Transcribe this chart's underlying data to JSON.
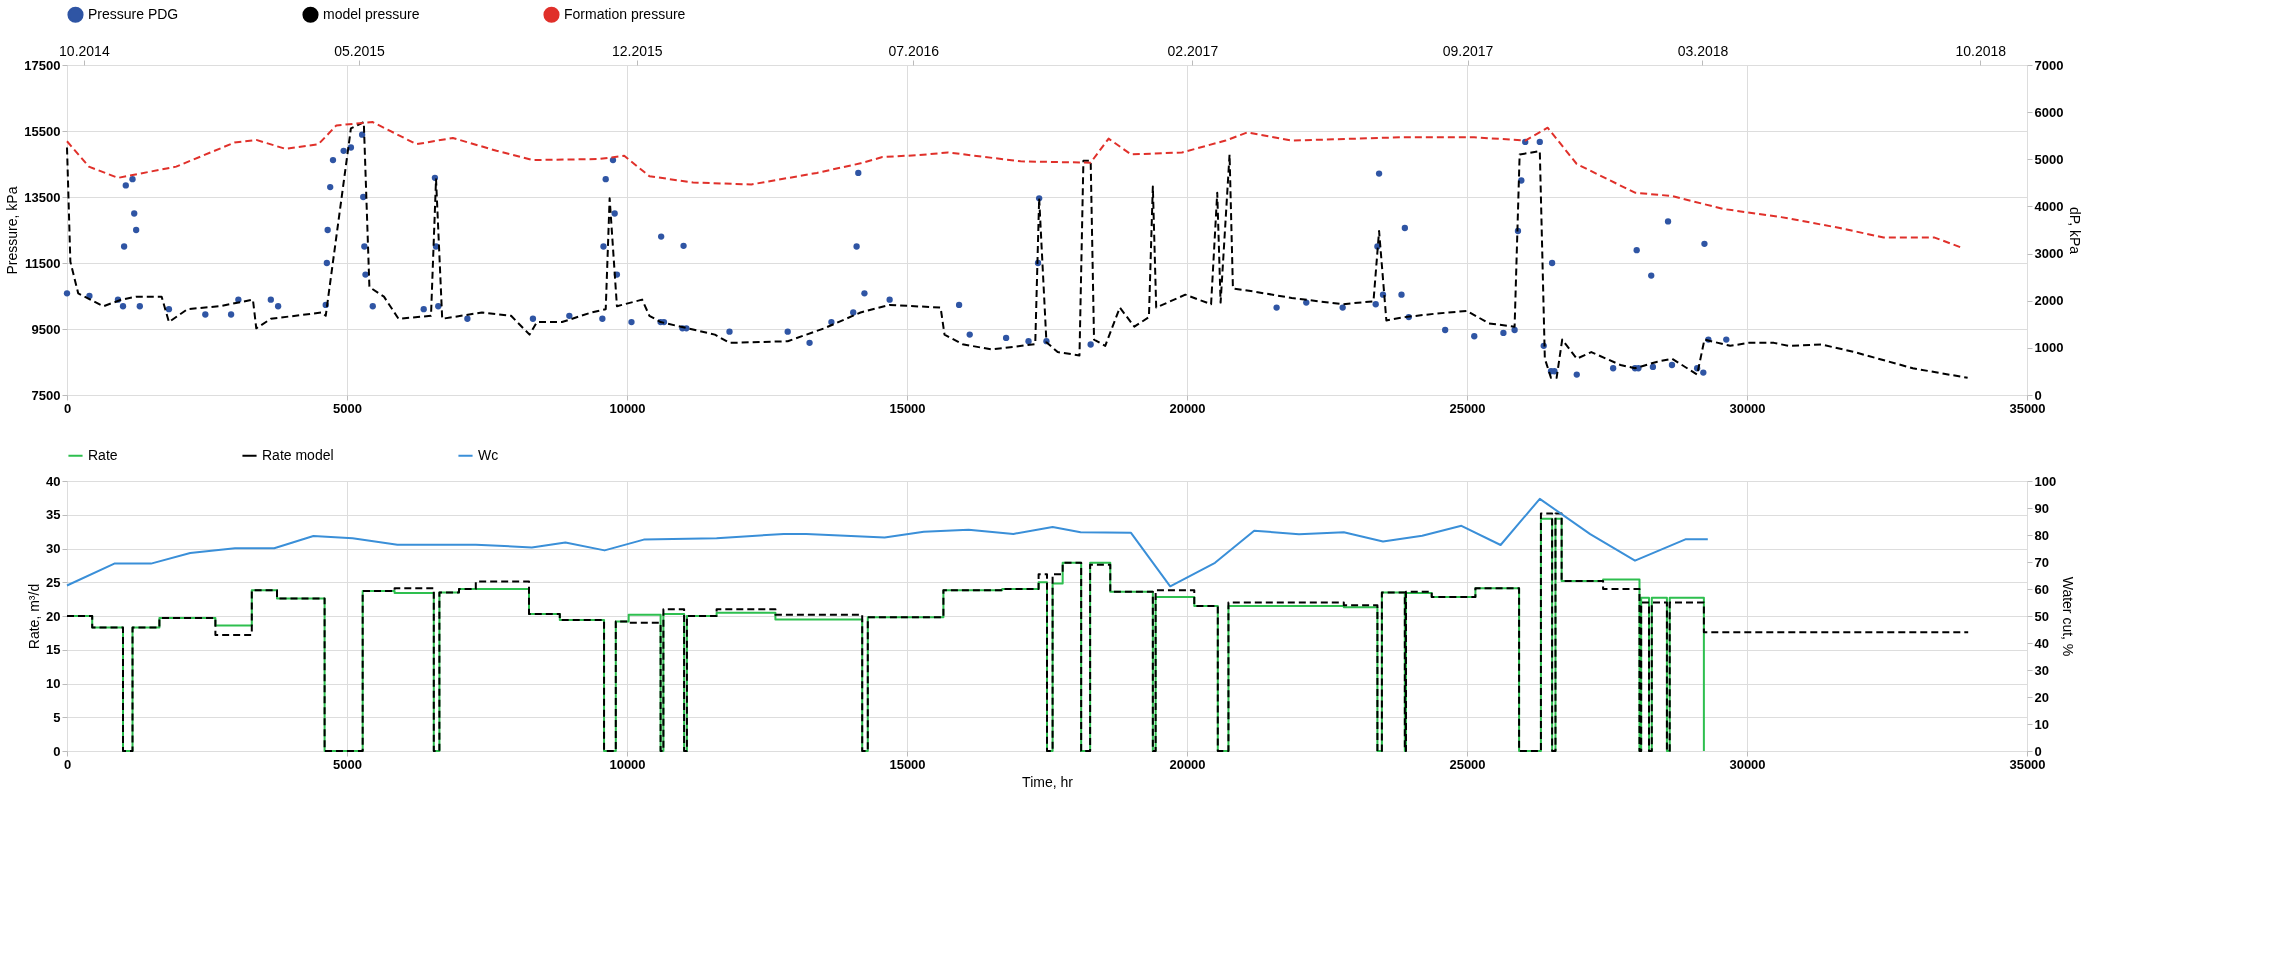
{
  "chart_data": [
    {
      "type": "line",
      "ylabel": "Pressure, kPa",
      "y2label": "dP, kPa",
      "xlim": [
        0,
        35000
      ],
      "xticks": [
        0,
        5000,
        10000,
        15000,
        20000,
        25000,
        30000,
        35000
      ],
      "ylim": [
        7500,
        17500
      ],
      "yticks": [
        7500,
        9500,
        11500,
        13500,
        15500,
        17500
      ],
      "y2lim": [
        0,
        7000
      ],
      "y2ticks": [
        0,
        1000,
        2000,
        3000,
        4000,
        5000,
        6000,
        7000
      ],
      "x2lim": [
        "2014-09-18",
        "2018-11-06"
      ],
      "x2ticks": [
        {
          "value": "2014-10",
          "label": "10.2014"
        },
        {
          "value": "2015-05",
          "label": "05.2015"
        },
        {
          "value": "2015-12",
          "label": "12.2015"
        },
        {
          "value": "2016-07",
          "label": "07.2016"
        },
        {
          "value": "2017-02",
          "label": "02.2017"
        },
        {
          "value": "2017-09",
          "label": "09.2017"
        },
        {
          "value": "2018-03",
          "label": "03.2018"
        },
        {
          "value": "2018-10",
          "label": "10.2018"
        }
      ],
      "grid": true,
      "legend": "top",
      "series": [
        {
          "name": "Pressure PDG",
          "type": "scatter",
          "marker": "circle",
          "color": "#2f55a4",
          "x": [
            0,
            400,
            910,
            1000,
            1020,
            1050,
            1170,
            1200,
            1235,
            1300,
            1820,
            2470,
            2930,
            3060,
            3640,
            3770,
            4620,
            4640,
            4655,
            4700,
            4750,
            4940,
            5070,
            5270,
            5290,
            5310,
            5330,
            5460,
            6370,
            6570,
            6590,
            6630,
            7150,
            8320,
            8970,
            9560,
            9580,
            9620,
            9750,
            9780,
            9820,
            10080,
            10600,
            10610,
            10660,
            10990,
            11010,
            11060,
            11830,
            12870,
            13260,
            13650,
            14040,
            14100,
            14130,
            14240,
            14690,
            15930,
            16120,
            16770,
            17170,
            17340,
            17360,
            17490,
            18280,
            21600,
            22130,
            22780,
            23370,
            23400,
            23430,
            23500,
            23830,
            23890,
            23960,
            24610,
            25130,
            25650,
            25850,
            25910,
            25970,
            26040,
            26300,
            26370,
            26500,
            26520,
            26560,
            26960,
            27610,
            28000,
            28030,
            28060,
            28290,
            28320,
            28590,
            28660,
            29110,
            29220,
            29240,
            29310,
            29630
          ],
          "values": [
            10580,
            10500,
            10390,
            10190,
            12000,
            13850,
            14040,
            13000,
            12500,
            10190,
            10100,
            9940,
            9940,
            10390,
            10390,
            10190,
            10230,
            11500,
            12500,
            13800,
            14620,
            14900,
            15000,
            15390,
            13500,
            12000,
            11150,
            10190,
            10100,
            14080,
            12000,
            10190,
            9810,
            9810,
            9900,
            9810,
            12000,
            14040,
            14620,
            13000,
            11150,
            9710,
            9710,
            12300,
            9710,
            9520,
            12020,
            9520,
            9420,
            9420,
            9080,
            9710,
            10000,
            12000,
            14230,
            10580,
            10390,
            10230,
            9330,
            9230,
            9130,
            11500,
            13460,
            9130,
            9030,
            10150,
            10300,
            10150,
            10250,
            12000,
            14210,
            10540,
            10540,
            12560,
            9860,
            9470,
            9280,
            9380,
            9470,
            12470,
            14000,
            15170,
            15170,
            8990,
            8220,
            11500,
            8220,
            8120,
            8310,
            8310,
            11890,
            8310,
            11120,
            8350,
            12760,
            8410,
            8310,
            8180,
            12080,
            9180,
            9180
          ]
        },
        {
          "name": "model pressure",
          "line_style": "dashed",
          "color": "#000000",
          "x": [
            0,
            60,
            200,
            650,
            975,
            1235,
            1690,
            1820,
            2150,
            2730,
            3320,
            3380,
            3640,
            4550,
            4620,
            5070,
            5300,
            5400,
            5660,
            5920,
            6500,
            6590,
            6700,
            7410,
            7930,
            8260,
            8390,
            8840,
            9360,
            9620,
            9690,
            9820,
            10270,
            10400,
            10600,
            11570,
            11830,
            12870,
            13520,
            14170,
            14690,
            15600,
            15670,
            15990,
            16510,
            17290,
            17360,
            17490,
            17690,
            18080,
            18150,
            18280,
            18340,
            18540,
            18800,
            19060,
            19320,
            19390,
            19450,
            19970,
            20430,
            20540,
            20600,
            20760,
            20820,
            21210,
            21870,
            22780,
            23330,
            23430,
            23560,
            23890,
            24410,
            25000,
            25390,
            25850,
            25940,
            26300,
            26390,
            26500,
            26600,
            26700,
            26960,
            27220,
            27740,
            28000,
            28400,
            28660,
            29110,
            29240,
            29700,
            30030,
            30480,
            30740,
            31330,
            31920,
            32960,
            33940
          ],
          "values": [
            15000,
            11540,
            10580,
            10190,
            10390,
            10480,
            10480,
            9710,
            10100,
            10190,
            10390,
            9520,
            9810,
            10000,
            9900,
            15580,
            15770,
            10770,
            10480,
            9810,
            9900,
            14040,
            9810,
            10000,
            9900,
            9330,
            9710,
            9710,
            10000,
            10100,
            13460,
            10190,
            10390,
            9900,
            9710,
            9330,
            9080,
            9130,
            9520,
            10000,
            10230,
            10150,
            9330,
            9040,
            8880,
            9040,
            13460,
            9100,
            8800,
            8700,
            14600,
            14600,
            9180,
            8990,
            10150,
            9570,
            9860,
            13820,
            10150,
            10540,
            10250,
            13630,
            10300,
            14790,
            10730,
            10630,
            10440,
            10250,
            10340,
            12470,
            9760,
            9860,
            9960,
            10050,
            9670,
            9570,
            14790,
            14890,
            8600,
            8020,
            8020,
            9180,
            8600,
            8800,
            8410,
            8310,
            8510,
            8600,
            8120,
            9180,
            8990,
            9080,
            9080,
            8990,
            9030,
            8800,
            8310,
            8020
          ]
        },
        {
          "name": "Formation pressure",
          "line_style": "dashed",
          "color": "#e0302a",
          "x": [
            0,
            390,
            910,
            1950,
            2990,
            3380,
            3900,
            4490,
            4810,
            5460,
            6240,
            6890,
            7670,
            8320,
            9490,
            9950,
            10400,
            11180,
            12220,
            13390,
            14170,
            14560,
            15210,
            15730,
            17030,
            18280,
            18600,
            19000,
            19910,
            20690,
            21080,
            21870,
            23830,
            25130,
            26040,
            26440,
            26960,
            28000,
            28660,
            29570,
            30610,
            31660,
            32440,
            33350,
            33810
          ],
          "values": [
            15190,
            14420,
            14080,
            14420,
            15150,
            15230,
            14960,
            15100,
            15670,
            15770,
            15100,
            15290,
            14900,
            14620,
            14650,
            14750,
            14130,
            13940,
            13880,
            14230,
            14520,
            14710,
            14770,
            14850,
            14580,
            14540,
            15270,
            14790,
            14850,
            15210,
            15460,
            15210,
            15310,
            15310,
            15210,
            15600,
            14500,
            13630,
            13530,
            13140,
            12890,
            12560,
            12270,
            12270,
            11980
          ]
        }
      ]
    },
    {
      "type": "step",
      "xlabel": "Time, hr",
      "ylabel": "Rate, m³/d",
      "y2label": "Water cut, %",
      "xlim": [
        0,
        35000
      ],
      "xticks": [
        0,
        5000,
        10000,
        15000,
        20000,
        25000,
        30000,
        35000
      ],
      "ylim": [
        0,
        40
      ],
      "yticks": [
        0,
        5,
        10,
        15,
        20,
        25,
        30,
        35,
        40
      ],
      "y2lim": [
        0,
        100
      ],
      "y2ticks": [
        0,
        10,
        20,
        30,
        40,
        50,
        60,
        70,
        80,
        90,
        100
      ],
      "grid": true,
      "legend": "top",
      "series": [
        {
          "name": "Rate",
          "line_style": "solid",
          "color": "#2ebf4f",
          "x": [
            0,
            450,
            1000,
            1170,
            1650,
            2650,
            3300,
            3750,
            4600,
            5280,
            5850,
            6550,
            6650,
            7000,
            8250,
            8800,
            9590,
            9800,
            10030,
            10600,
            10650,
            11020,
            11070,
            11600,
            12650,
            14200,
            14300,
            15650,
            16700,
            17350,
            17500,
            17600,
            17780,
            18110,
            18270,
            18630,
            19390,
            19440,
            20130,
            20550,
            20740,
            22800,
            23400,
            23480,
            23890,
            23910,
            24370,
            25150,
            25930,
            26320,
            26520,
            26580,
            26690,
            27430,
            28080,
            28110,
            28250,
            28300,
            28570,
            28620,
            29230
          ],
          "values": [
            20,
            18.3,
            0,
            18.3,
            19.7,
            18.6,
            23.8,
            22.6,
            0,
            23.7,
            23.4,
            0,
            23.5,
            24,
            20.3,
            19.4,
            0,
            19.2,
            20.2,
            0,
            20.3,
            0,
            20,
            20.5,
            19.5,
            0,
            19.8,
            23.8,
            24,
            25,
            0,
            24.8,
            27.9,
            0,
            27.9,
            23.6,
            0,
            22.8,
            21.5,
            0,
            21.5,
            21.3,
            0,
            23.5,
            0,
            23.4,
            22.8,
            24.1,
            0,
            34.4,
            0,
            34.4,
            25.2,
            25.4,
            0,
            22.7,
            0,
            22.7,
            0,
            22.7,
            0
          ]
        },
        {
          "name": "Rate model",
          "line_style": "dashed",
          "color": "#000000",
          "x": [
            0,
            450,
            1000,
            1170,
            1650,
            2650,
            3300,
            3750,
            4600,
            5280,
            5850,
            6550,
            6650,
            7000,
            7300,
            8250,
            8800,
            9590,
            9800,
            10030,
            10600,
            10650,
            11020,
            11070,
            11600,
            12650,
            14200,
            14300,
            15650,
            16700,
            17350,
            17500,
            17600,
            17780,
            18110,
            18270,
            18630,
            19390,
            19440,
            20130,
            20550,
            20740,
            22800,
            23400,
            23480,
            23890,
            23910,
            24370,
            25150,
            25930,
            26320,
            26520,
            26580,
            26690,
            27430,
            28080,
            28110,
            28250,
            28300,
            28570,
            28620,
            29230,
            33950
          ],
          "values": [
            20,
            18.3,
            0,
            18.3,
            19.7,
            17.2,
            23.8,
            22.6,
            0,
            23.7,
            24.1,
            0,
            23.5,
            24,
            25.1,
            20.3,
            19.4,
            0,
            19.2,
            19,
            0,
            21,
            0,
            20,
            21,
            20.2,
            0,
            19.8,
            23.8,
            24,
            26.2,
            0,
            26.2,
            27.9,
            0,
            27.6,
            23.6,
            0,
            23.8,
            21.5,
            0,
            22,
            21.6,
            0,
            23.5,
            0,
            23.6,
            22.8,
            24.1,
            0,
            35.2,
            0,
            35.2,
            25.2,
            24,
            0,
            22,
            0,
            22,
            0,
            22,
            17.6,
            17.6
          ]
        },
        {
          "name": "Wc",
          "type": "line",
          "line_style": "solid",
          "axis": "y2",
          "color": "#3a8fd8",
          "x": [
            0,
            845,
            1500,
            2200,
            3000,
            3700,
            4400,
            5100,
            5900,
            7300,
            8300,
            8900,
            9600,
            10300,
            11600,
            12800,
            13200,
            14600,
            15300,
            16100,
            16900,
            17600,
            18100,
            19000,
            19700,
            20500,
            21200,
            22000,
            22800,
            23500,
            24200,
            24900,
            25600,
            26300,
            27200,
            28000,
            28900,
            29300
          ],
          "values": [
            61.3,
            69.4,
            69.4,
            73.3,
            75.1,
            75.1,
            79.6,
            78.8,
            76.4,
            76.4,
            75.4,
            77.2,
            74.3,
            78.3,
            78.8,
            80.4,
            80.4,
            79.1,
            81.2,
            81.9,
            80.4,
            83,
            81,
            80.8,
            61,
            69.7,
            81.6,
            80.3,
            81,
            77.6,
            79.7,
            83.4,
            76.3,
            93.4,
            80.3,
            70.5,
            78.4,
            78.4
          ]
        }
      ]
    }
  ]
}
